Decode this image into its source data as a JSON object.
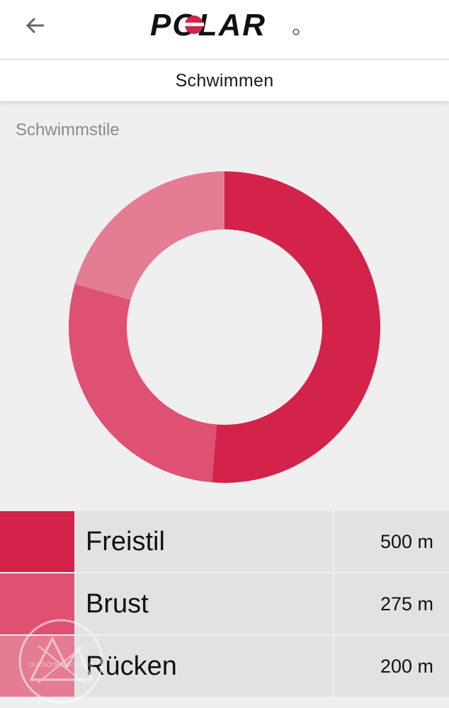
{
  "header": {
    "back_icon": "arrow-left-icon",
    "logo_text": "POLAR"
  },
  "page": {
    "title": "Schwimmen"
  },
  "section": {
    "title": "Schwimmstile"
  },
  "colors": {
    "freistil": "#d3234b",
    "brust": "#de5173",
    "ruecken": "#e47d93"
  },
  "chart_data": {
    "type": "pie",
    "categories": [
      "Freistil",
      "Brust",
      "Rücken"
    ],
    "values": [
      500,
      275,
      200
    ],
    "unit": "m",
    "value_labels": [
      "500 m",
      "275 m",
      "200 m"
    ]
  },
  "watermark": {
    "text": "OUTDOORTEST.INFO"
  }
}
